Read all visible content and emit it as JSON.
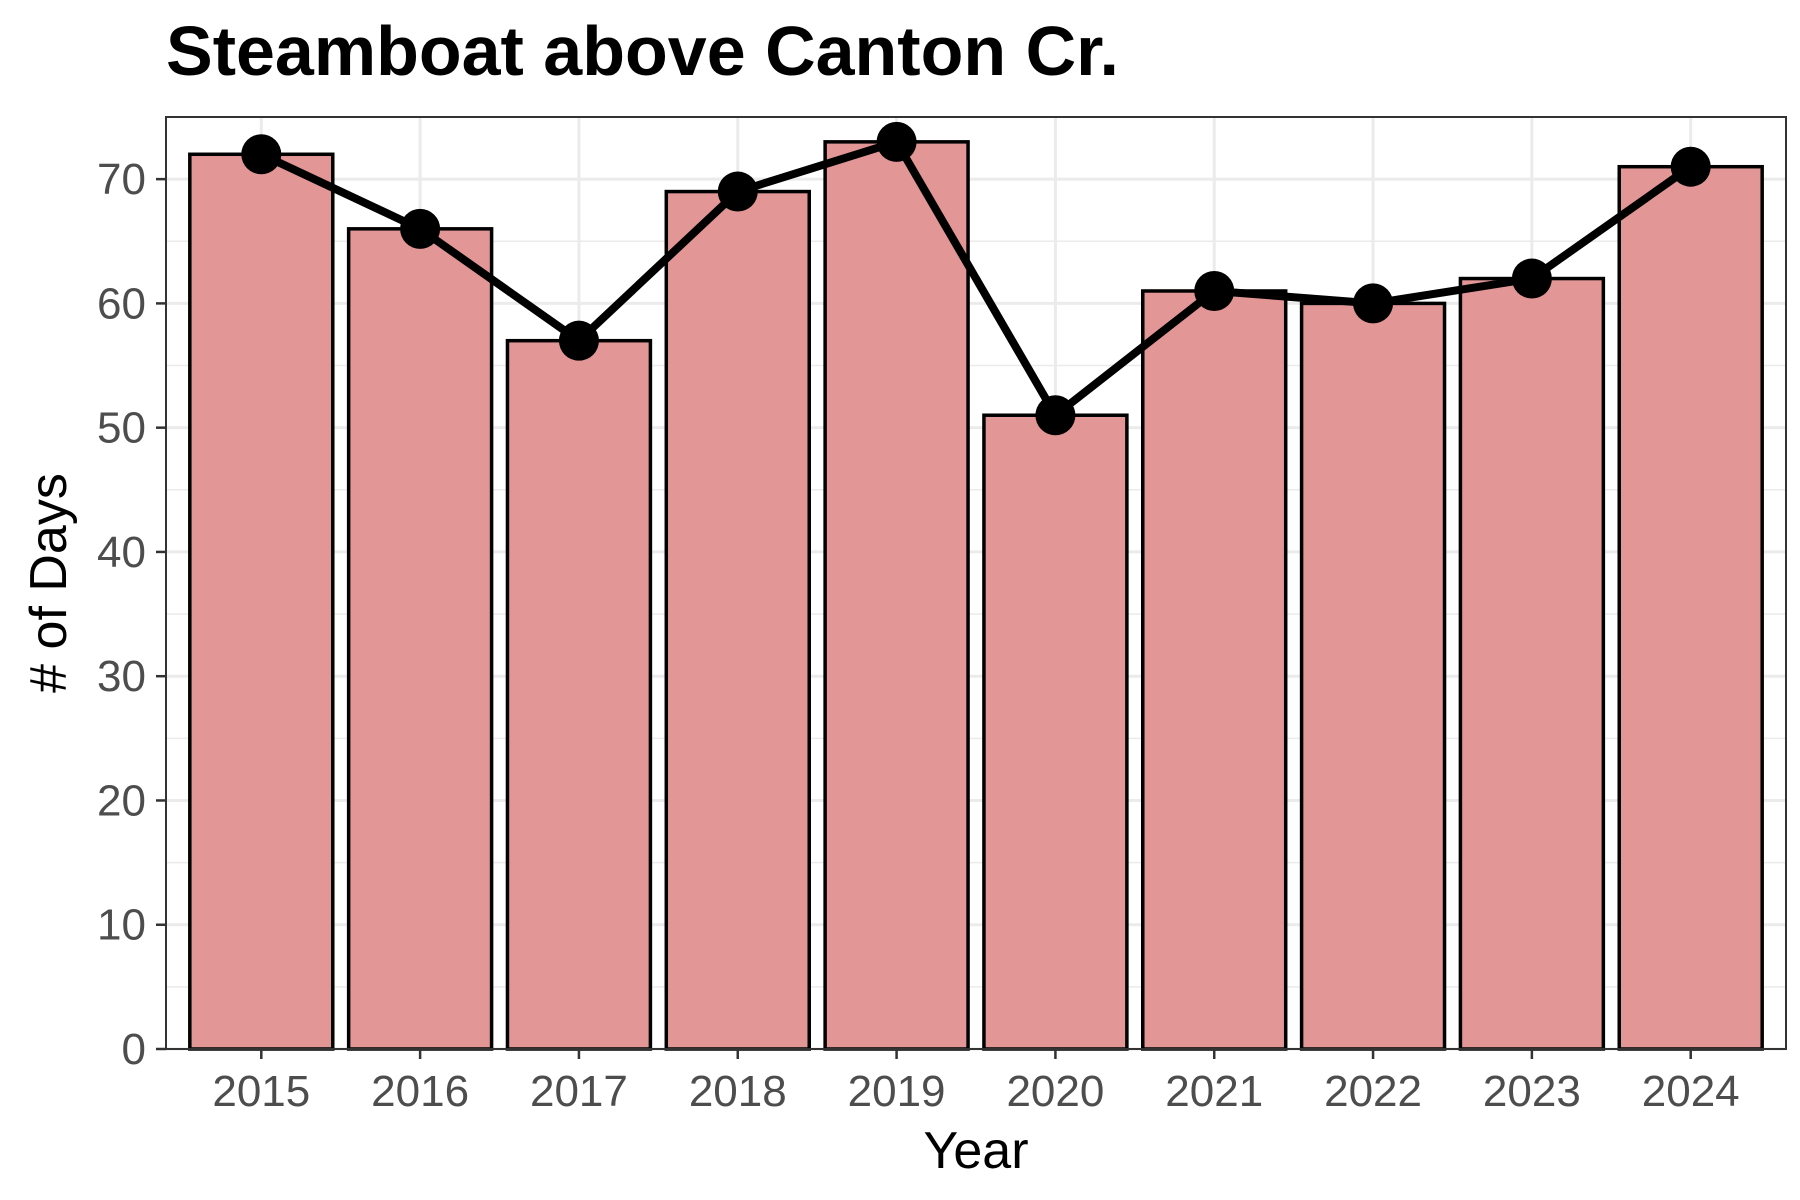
{
  "chart_data": {
    "type": "bar",
    "title": "Steamboat above Canton Cr.",
    "xlabel": "Year",
    "ylabel": "# of Days",
    "categories": [
      "2015",
      "2016",
      "2017",
      "2018",
      "2019",
      "2020",
      "2021",
      "2022",
      "2023",
      "2024"
    ],
    "values": [
      72,
      66,
      57,
      69,
      73,
      51,
      61,
      60,
      62,
      71
    ],
    "overlay": {
      "type": "line",
      "markers": true,
      "values": [
        72,
        66,
        57,
        69,
        73,
        51,
        61,
        60,
        62,
        71
      ]
    },
    "ylim": [
      0,
      75
    ],
    "yticks": [
      0,
      10,
      20,
      30,
      40,
      50,
      60,
      70
    ],
    "grid": true,
    "legend": "none",
    "colors": {
      "bar_fill": "#e39696",
      "bar_stroke": "#000000",
      "line": "#000000",
      "grid": "#ebebeb",
      "panel_border": "#333333"
    }
  }
}
